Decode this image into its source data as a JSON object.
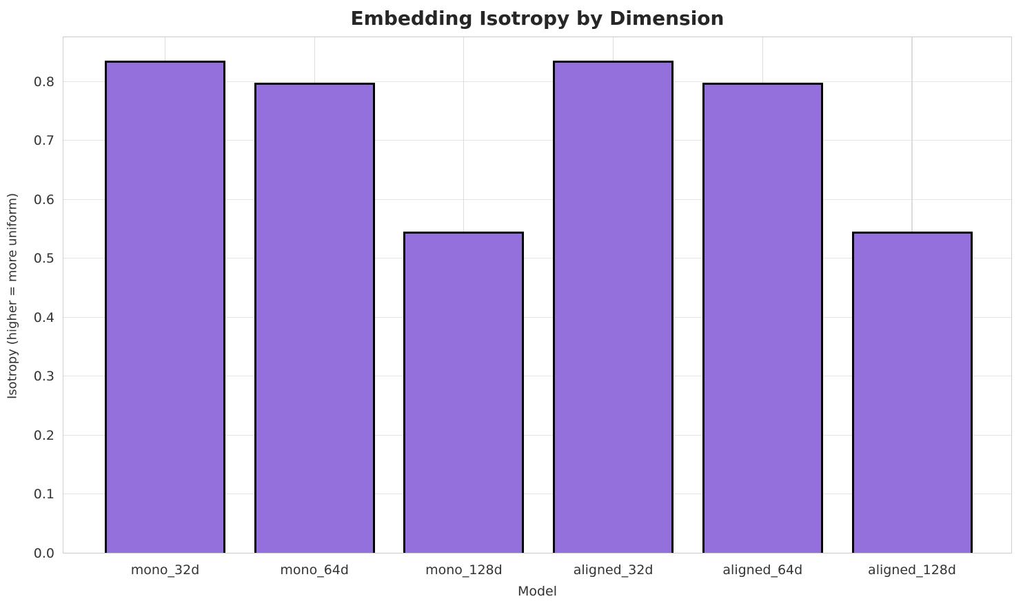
{
  "chart_data": {
    "type": "bar",
    "title": "Embedding Isotropy by Dimension",
    "xlabel": "Model",
    "ylabel": "Isotropy (higher = more uniform)",
    "categories": [
      "mono_32d",
      "mono_64d",
      "mono_128d",
      "aligned_32d",
      "aligned_64d",
      "aligned_128d"
    ],
    "values": [
      0.836,
      0.799,
      0.546,
      0.836,
      0.799,
      0.546
    ],
    "ytick_labels": [
      "0.0",
      "0.1",
      "0.2",
      "0.3",
      "0.4",
      "0.5",
      "0.6",
      "0.7",
      "0.8"
    ],
    "ylim": [
      0,
      0.877
    ],
    "grid": true,
    "legend": "none",
    "bar_color": "#9370DB",
    "bar_edge_color": "#000000",
    "grid_color": "#e4e4e4",
    "spine_color": "#cccccc"
  }
}
